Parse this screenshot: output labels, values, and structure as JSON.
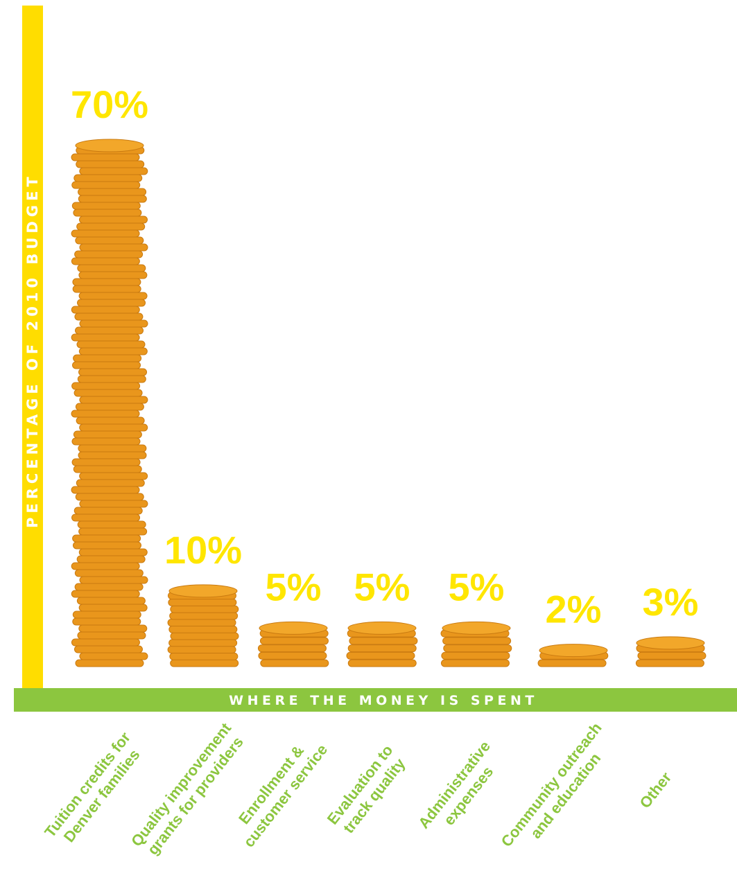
{
  "chart_data": {
    "type": "bar",
    "ylabel": "PERCENTAGE OF 2010 BUDGET",
    "xlabel": "WHERE THE MONEY IS SPENT",
    "categories": [
      [
        "Tuition credits for",
        "Denver families"
      ],
      [
        "Quality improvement",
        "grants for providers"
      ],
      [
        "Enrollment &",
        "customer service"
      ],
      [
        "Evaluation to",
        "track quality"
      ],
      [
        "Administrative",
        "expenses"
      ],
      [
        "Community outreach",
        "and education"
      ],
      [
        "Other"
      ]
    ],
    "values": [
      70,
      10,
      5,
      5,
      5,
      2,
      3
    ],
    "value_labels": [
      "70%",
      "10%",
      "5%",
      "5%",
      "5%",
      "2%",
      "3%"
    ],
    "grid": false
  },
  "colors": {
    "y_axis_bar": "#ffdd00",
    "x_axis_bar": "#8cc63f",
    "value_label": "#ffe600",
    "category_label": "#8cc63f",
    "coin_side": "#e9961c",
    "coin_top": "#f2a72a",
    "coin_edge": "#c97a10"
  },
  "icons": {
    "bar_mark": "coin-stack-icon"
  }
}
